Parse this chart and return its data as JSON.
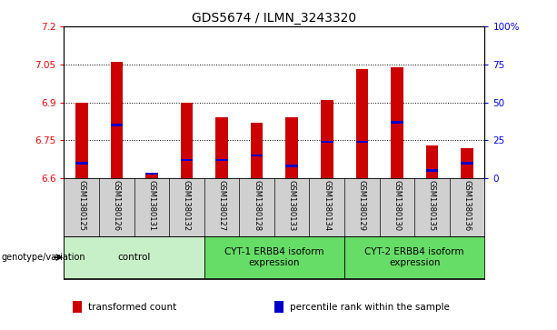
{
  "title": "GDS5674 / ILMN_3243320",
  "samples": [
    "GSM1380125",
    "GSM1380126",
    "GSM1380131",
    "GSM1380132",
    "GSM1380127",
    "GSM1380128",
    "GSM1380133",
    "GSM1380134",
    "GSM1380129",
    "GSM1380130",
    "GSM1380135",
    "GSM1380136"
  ],
  "transformed_counts": [
    6.9,
    7.06,
    6.62,
    6.9,
    6.84,
    6.82,
    6.84,
    6.91,
    7.03,
    7.04,
    6.73,
    6.72
  ],
  "percentile_ranks": [
    10,
    35,
    3,
    12,
    12,
    15,
    8,
    24,
    24,
    37,
    5,
    10
  ],
  "ymin": 6.6,
  "ymax": 7.2,
  "yticks": [
    6.6,
    6.75,
    6.9,
    7.05,
    7.2
  ],
  "right_yticks": [
    0,
    25,
    50,
    75,
    100
  ],
  "bar_color": "#cc0000",
  "blue_color": "#0000cc",
  "plot_bg": "#ffffff",
  "groups": [
    {
      "label": "control",
      "start": 0,
      "end": 4,
      "color": "#c8f0c8"
    },
    {
      "label": "CYT-1 ERBB4 isoform\nexpression",
      "start": 4,
      "end": 8,
      "color": "#66dd66"
    },
    {
      "label": "CYT-2 ERBB4 isoform\nexpression",
      "start": 8,
      "end": 12,
      "color": "#66dd66"
    }
  ],
  "genotype_label": "genotype/variation",
  "legend_items": [
    {
      "label": "transformed count",
      "color": "#cc0000"
    },
    {
      "label": "percentile rank within the sample",
      "color": "#0000cc"
    }
  ],
  "bar_width": 0.35,
  "title_fontsize": 10,
  "tick_fontsize": 7.5,
  "label_fontsize": 6,
  "group_label_fontsize": 7.5
}
